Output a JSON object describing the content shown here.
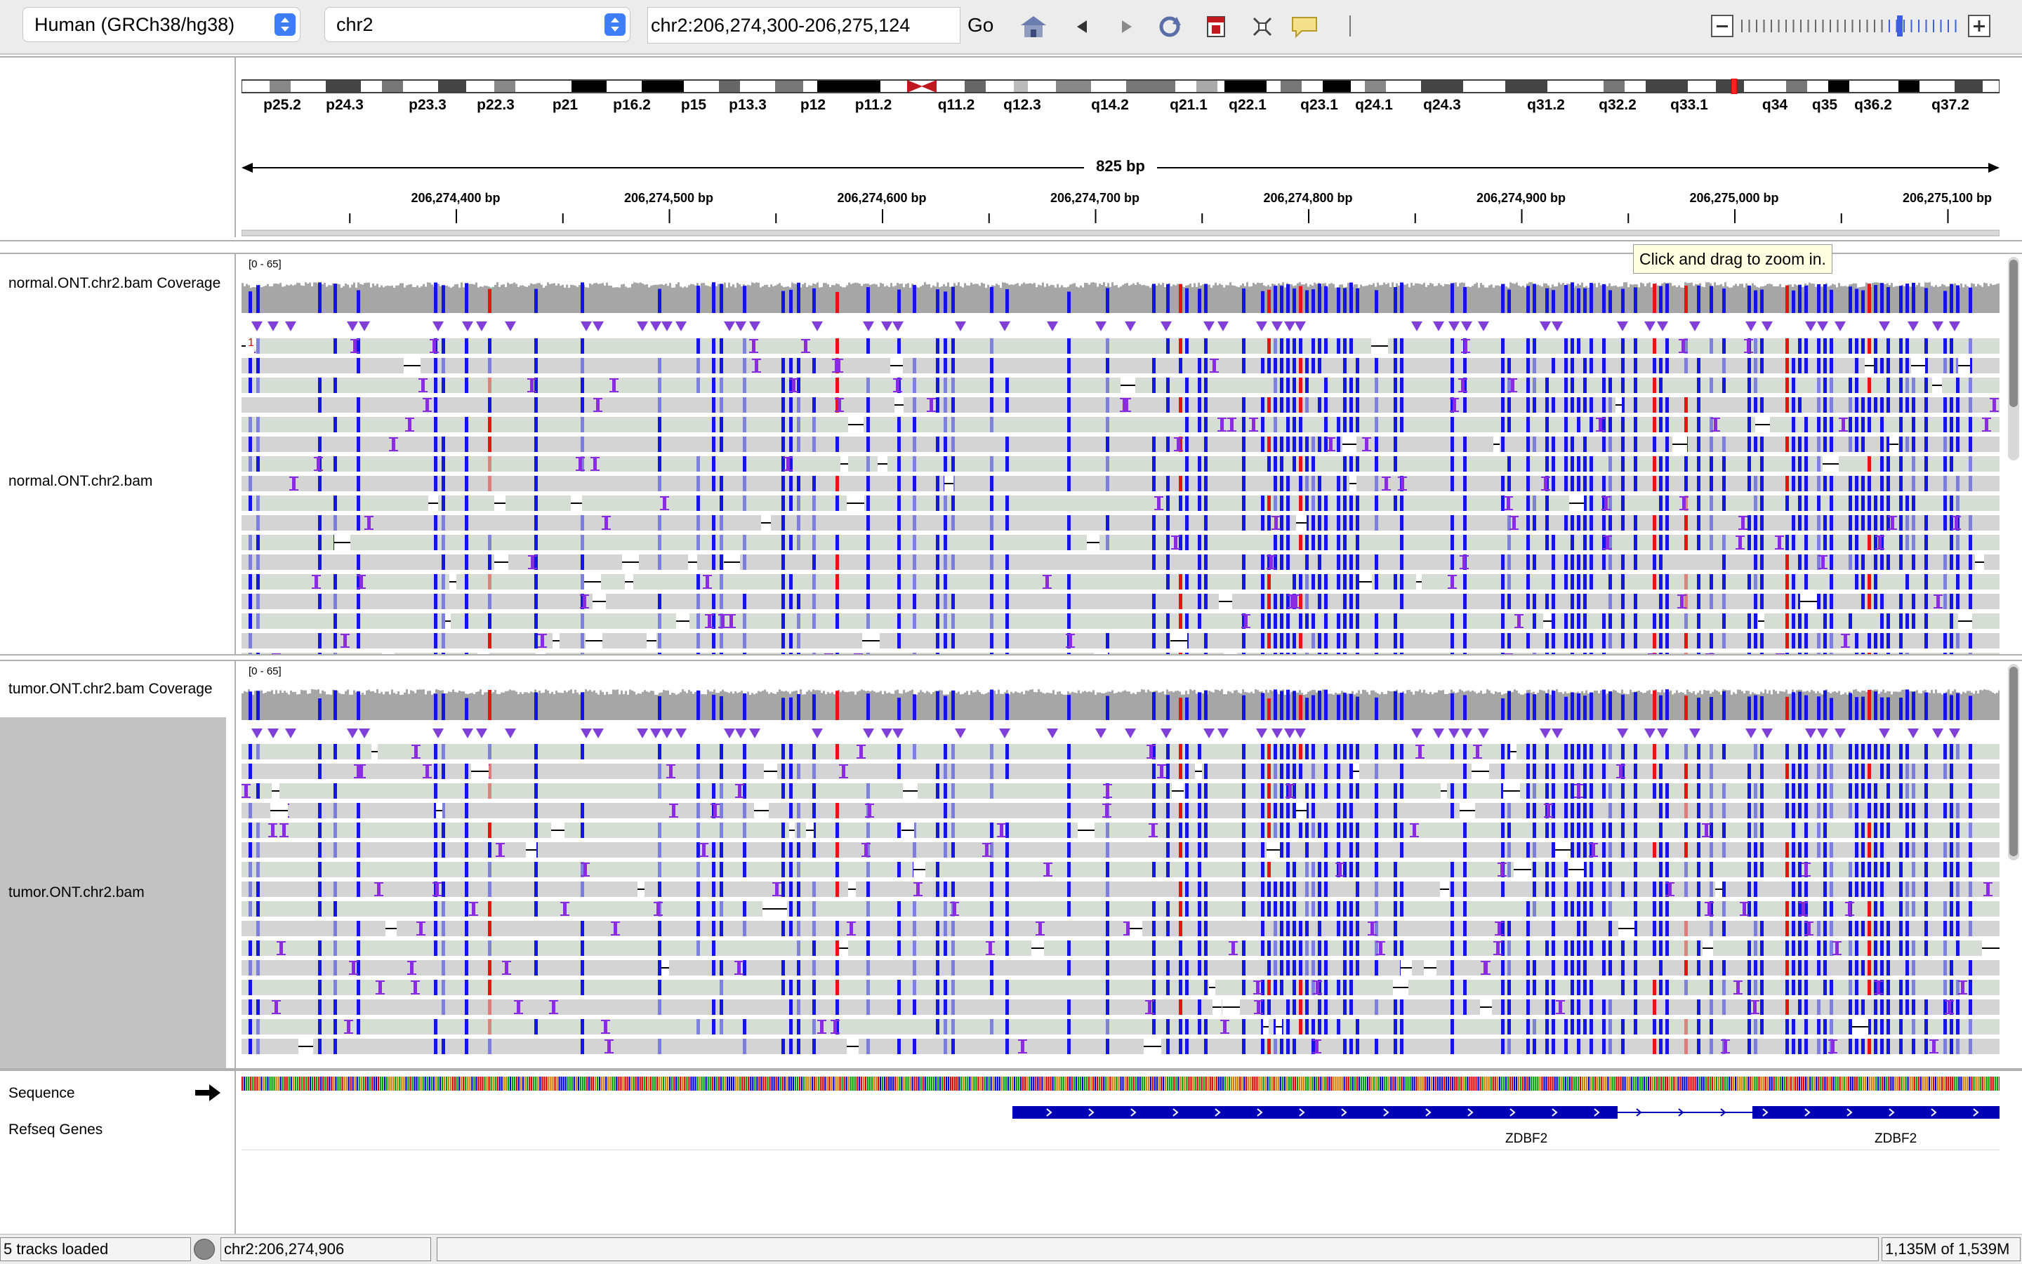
{
  "toolbar": {
    "genome": "Human (GRCh38/hg38)",
    "chromosome": "chr2",
    "locus": "chr2:206,274,300-206,275,124",
    "go_label": "Go"
  },
  "ideogram": {
    "bands": [
      "p25.2",
      "p24.3",
      "p23.3",
      "p22.3",
      "p21",
      "p16.2",
      "p15",
      "p13.3",
      "p12",
      "p11.2",
      "q11.2",
      "q12.3",
      "q14.2",
      "q21.1",
      "q22.1",
      "q23.1",
      "q24.1",
      "q24.3",
      "q31.2",
      "q32.2",
      "q33.1",
      "q34",
      "q35",
      "q36.2",
      "q37.2"
    ]
  },
  "ruler": {
    "span": "825 bp",
    "ticks": [
      "206,274,400 bp",
      "206,274,500 bp",
      "206,274,600 bp",
      "206,274,700 bp",
      "206,274,800 bp",
      "206,274,900 bp",
      "206,275,000 bp",
      "206,275,100 bp"
    ]
  },
  "tracks": {
    "normal_coverage": "normal.ONT.chr2.bam Coverage",
    "normal_reads": "normal.ONT.chr2.bam",
    "tumor_coverage": "tumor.ONT.chr2.bam Coverage",
    "tumor_reads": "tumor.ONT.chr2.bam",
    "coverage_range": "[0 - 65]",
    "sequence": "Sequence",
    "refseq": "Refseq Genes",
    "gene_label": "ZDBF2",
    "row_badge": "1"
  },
  "tooltip": "Click and drag to zoom in.",
  "status": {
    "tracks_loaded": "5 tracks loaded",
    "position": "chr2:206,274,906",
    "memory": "1,135M of 1,539M"
  },
  "colors": {
    "mismatch_blue": "#1414e6",
    "mismatch_red": "#e61414",
    "insertion_purple": "#8a2be2",
    "read_green": "#d6ddd4",
    "read_grey": "#d4d4d4",
    "coverage_grey": "#a6a6a6",
    "gene_blue": "#0000b4"
  }
}
